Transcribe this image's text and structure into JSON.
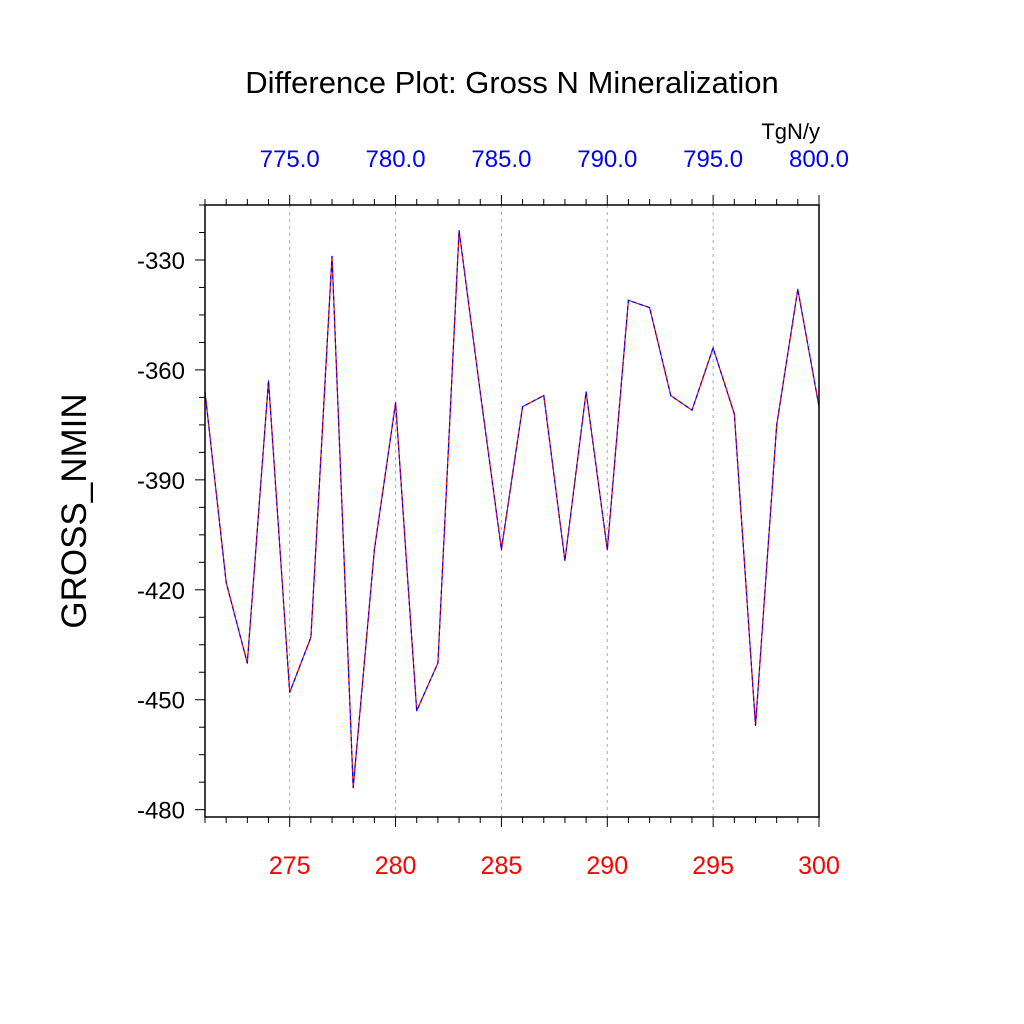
{
  "chart_data": {
    "type": "line",
    "title": "Difference Plot: Gross N Mineralization",
    "ylabel": "GROSS_NMIN",
    "units": "TgN/y",
    "ylim": [
      -482,
      -315
    ],
    "xlim": [
      271,
      300
    ],
    "x_ticks": [
      275,
      280,
      285,
      290,
      295,
      300
    ],
    "x_tick_labels": [
      "275",
      "280",
      "285",
      "290",
      "295",
      "300"
    ],
    "top_ticks": [
      275,
      280,
      285,
      290,
      295,
      300
    ],
    "top_tick_labels": [
      "775.0",
      "780.0",
      "785.0",
      "790.0",
      "795.0",
      "800.0"
    ],
    "y_ticks": [
      -330,
      -360,
      -390,
      -420,
      -450,
      -480
    ],
    "y_tick_labels": [
      "-330",
      "-360",
      "-390",
      "-420",
      "-450",
      "-480"
    ],
    "grid": "vertical dashed at major x ticks",
    "colors": {
      "bottom_axis_labels": "#ff0000",
      "top_axis_labels": "#0000ff",
      "series_a": "#ff0000",
      "series_b": "#0000ff",
      "grid": "#aaaaaa"
    },
    "series": [
      {
        "x": [
          271,
          272,
          273,
          274,
          275,
          276,
          277,
          278,
          279,
          280,
          281,
          282,
          283,
          284,
          285,
          286,
          287,
          288,
          289,
          290,
          291,
          292,
          293,
          294,
          295,
          296,
          297,
          298,
          299,
          300
        ],
        "values": [
          -366,
          -418,
          -440,
          -363,
          -448,
          -433,
          -329,
          -474,
          -409,
          -369,
          -453,
          -440,
          -322,
          -366,
          -409,
          -370,
          -367,
          -412,
          -366,
          -409,
          -341,
          -343,
          -367,
          -371,
          -354,
          -372,
          -457,
          -375,
          -338,
          -370
        ]
      }
    ]
  }
}
